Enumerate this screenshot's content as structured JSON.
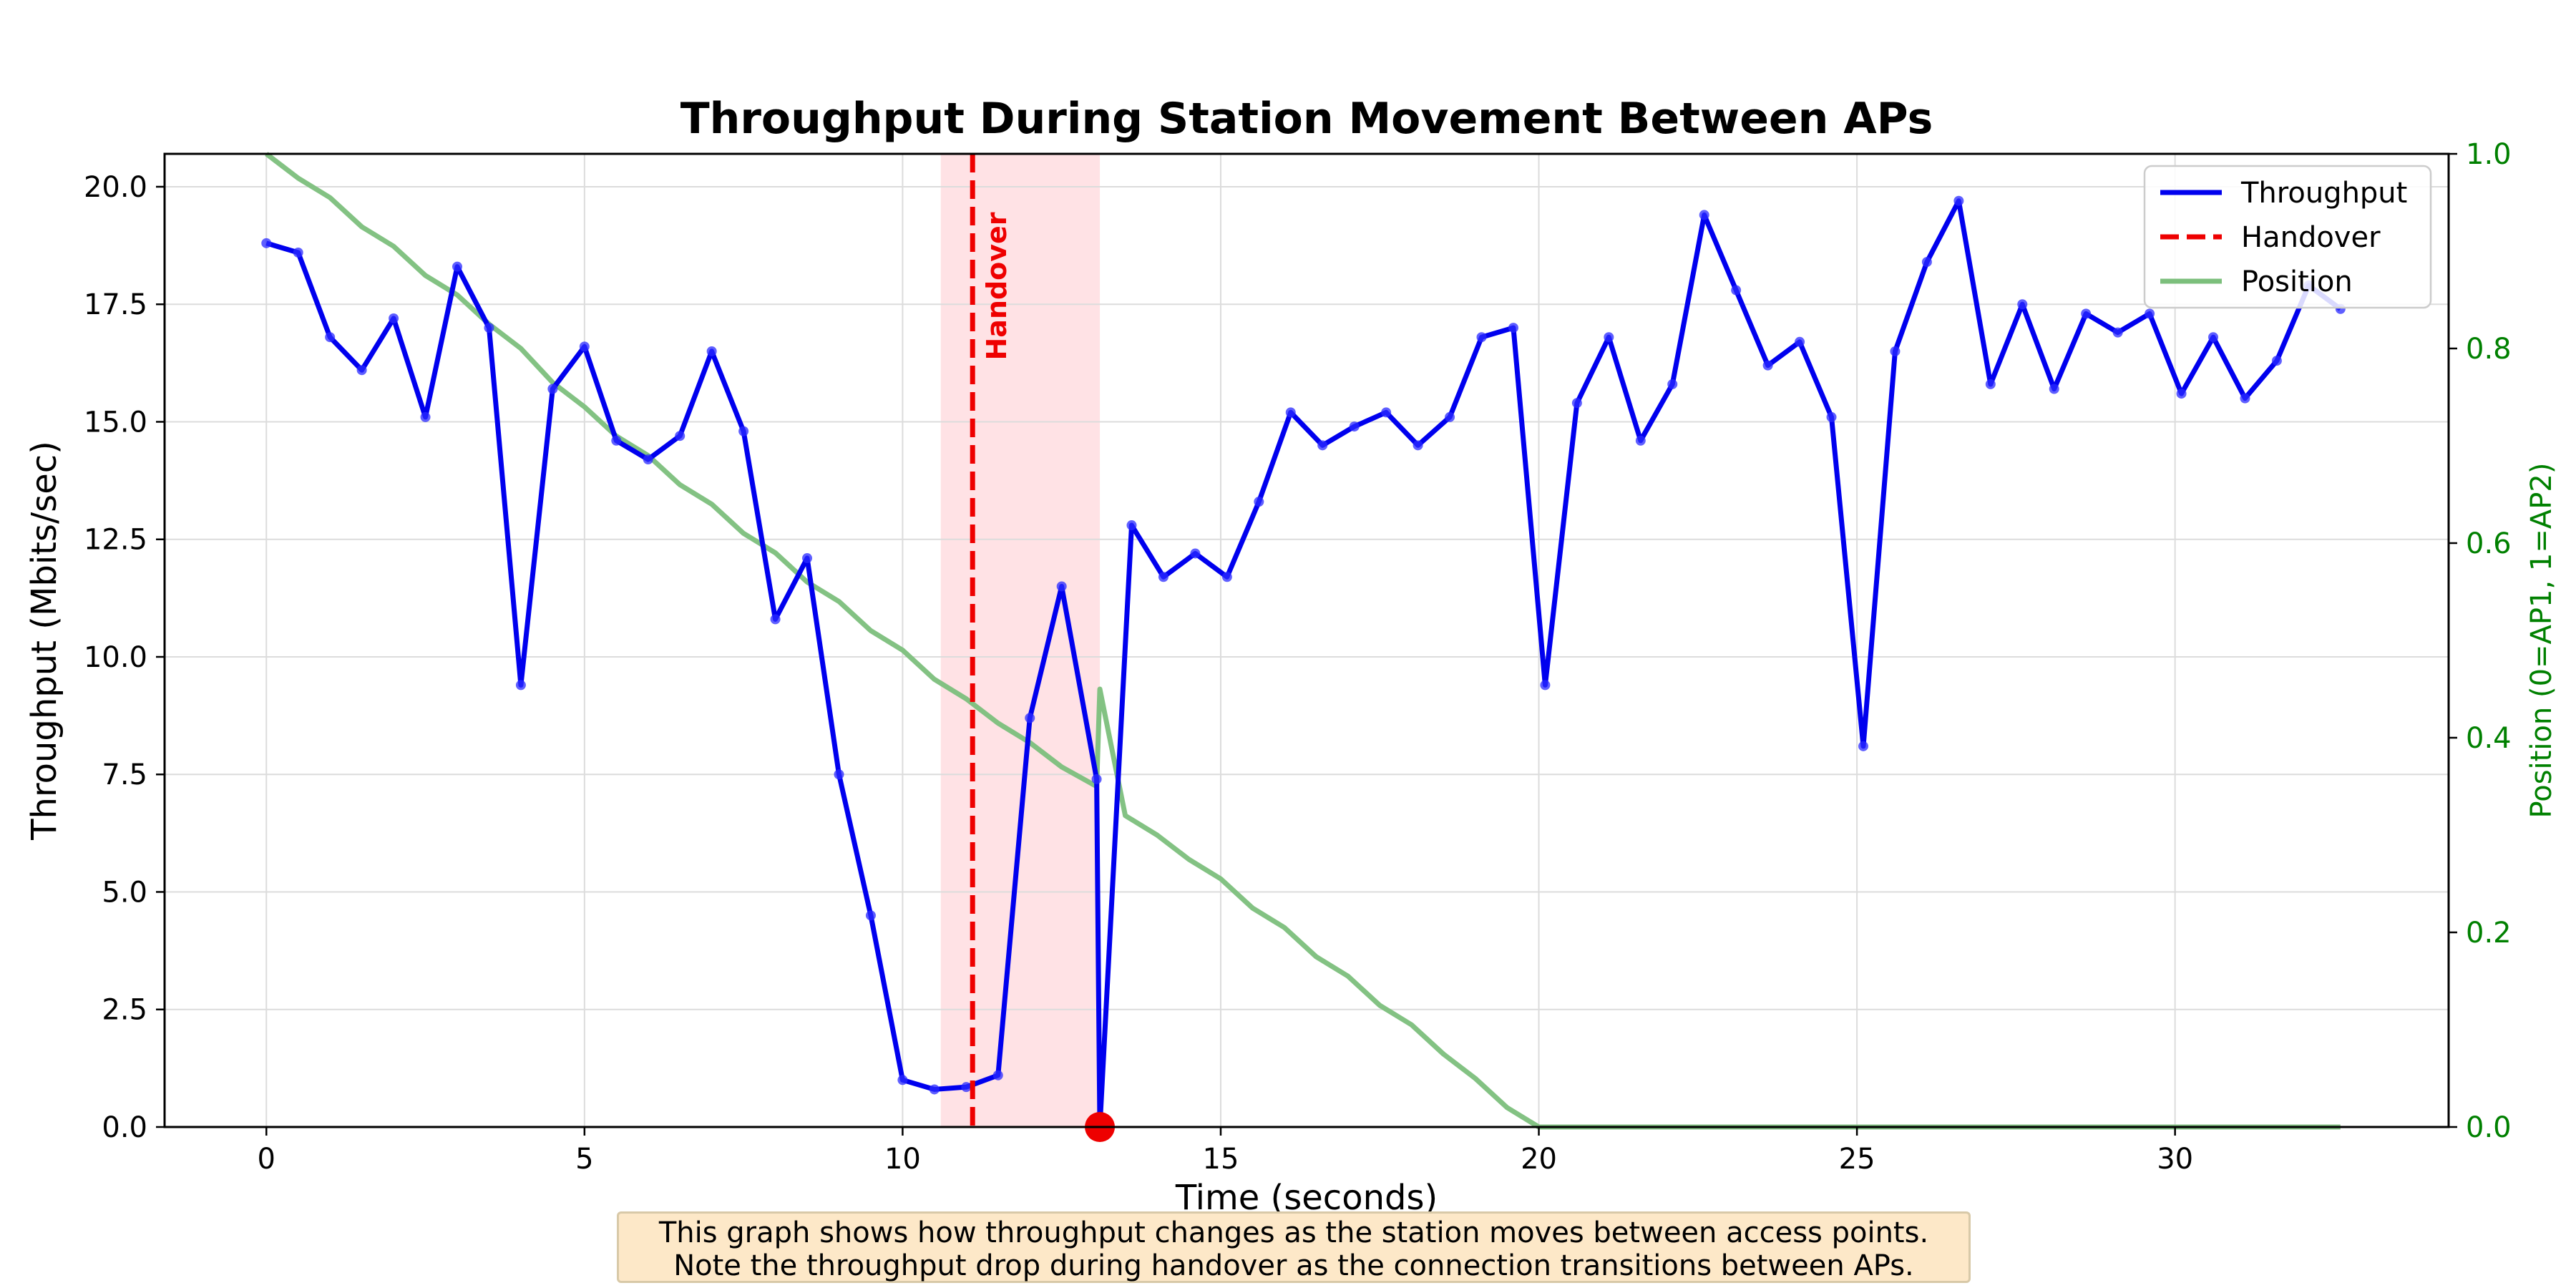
{
  "chart_data": {
    "type": "line",
    "title": "Throughput During Station Movement Between APs",
    "xlabel": "Time (seconds)",
    "ylabel": "Throughput (Mbits/sec)",
    "ylabel_right": "Position (0=AP1, 1=AP2)",
    "xlim": [
      -1.6,
      34.3
    ],
    "ylim": [
      0,
      20.7
    ],
    "ylim_right": [
      0,
      1.0
    ],
    "xticks": [
      0,
      5,
      10,
      15,
      20,
      25,
      30
    ],
    "yticks": [
      "0.0",
      "2.5",
      "5.0",
      "7.5",
      "10.0",
      "12.5",
      "15.0",
      "17.5",
      "20.0"
    ],
    "yticks_right": [
      "0.0",
      "0.2",
      "0.4",
      "0.6",
      "0.8",
      "1.0"
    ],
    "grid": true,
    "legend_position": "top-right",
    "colors": {
      "throughput": "#0000ee",
      "handover": "#ee0000",
      "position": "#7cbf7c",
      "handover_band": "#ffdde0",
      "right_axis": "#008000"
    },
    "handover": {
      "label": "Handover",
      "time": 11.1,
      "band": [
        10.6,
        13.1
      ],
      "failure_marker": {
        "x": 13.1,
        "y": 0.0
      }
    },
    "series": [
      {
        "name": "Throughput",
        "axis": "left",
        "style": "solid-markers",
        "x": [
          0,
          0.5,
          1.0,
          1.5,
          2.0,
          2.5,
          3.0,
          3.5,
          4.0,
          4.5,
          5.0,
          5.5,
          6.0,
          6.5,
          7.0,
          7.5,
          8.0,
          8.5,
          9.0,
          9.5,
          10.0,
          10.5,
          11.0,
          11.5,
          12.0,
          12.5,
          13.05,
          13.1,
          13.6,
          14.1,
          14.6,
          15.1,
          15.6,
          16.1,
          16.6,
          17.1,
          17.6,
          18.1,
          18.6,
          19.1,
          19.6,
          20.1,
          20.6,
          21.1,
          21.6,
          22.1,
          22.6,
          23.1,
          23.6,
          24.1,
          24.6,
          25.1,
          25.6,
          26.1,
          26.6,
          27.1,
          27.6,
          28.1,
          28.6,
          29.1,
          29.6,
          30.1,
          30.6,
          31.1,
          31.6,
          32.1,
          32.6
        ],
        "y": [
          18.8,
          18.6,
          16.8,
          16.1,
          17.2,
          15.1,
          18.3,
          17.0,
          9.4,
          15.7,
          16.6,
          14.6,
          14.2,
          14.7,
          16.5,
          14.8,
          10.8,
          12.1,
          7.5,
          4.5,
          1.0,
          0.8,
          0.85,
          1.1,
          8.7,
          11.5,
          7.4,
          0.0,
          12.8,
          11.7,
          12.2,
          11.7,
          13.3,
          15.2,
          14.5,
          14.9,
          15.2,
          14.5,
          15.1,
          16.8,
          17.0,
          9.4,
          15.4,
          16.8,
          14.6,
          15.8,
          19.4,
          17.8,
          16.2,
          16.7,
          15.1,
          8.1,
          16.5,
          18.4,
          19.7,
          15.8,
          17.5,
          15.7,
          17.3,
          16.9,
          17.3,
          15.6,
          16.8,
          15.5,
          16.3,
          17.9,
          17.4
        ]
      },
      {
        "name": "Handover",
        "axis": "left",
        "style": "dashed-vertical",
        "x": [
          11.1,
          11.1
        ],
        "y": [
          0,
          20.7
        ]
      },
      {
        "name": "Position",
        "axis": "right",
        "style": "solid",
        "x": [
          0,
          0.5,
          1.0,
          1.5,
          2.0,
          2.5,
          3.0,
          3.5,
          4.0,
          4.5,
          5.0,
          5.5,
          6.0,
          6.5,
          7.0,
          7.5,
          8.0,
          8.5,
          9.0,
          9.5,
          10.0,
          10.5,
          11.0,
          11.5,
          12.0,
          12.5,
          13.05,
          13.1,
          13.5,
          14.0,
          14.5,
          15.0,
          15.5,
          16.0,
          16.5,
          17.0,
          17.5,
          18.0,
          18.5,
          19.0,
          19.5,
          20.0,
          20.5,
          21.0,
          22.0,
          24.0,
          26.0,
          28.0,
          30.0,
          32.0,
          32.6
        ],
        "y": [
          1.0,
          0.975,
          0.955,
          0.925,
          0.905,
          0.875,
          0.855,
          0.825,
          0.8,
          0.765,
          0.74,
          0.71,
          0.69,
          0.66,
          0.64,
          0.61,
          0.59,
          0.56,
          0.54,
          0.51,
          0.49,
          0.46,
          0.44,
          0.415,
          0.395,
          0.37,
          0.35,
          0.45,
          0.32,
          0.3,
          0.275,
          0.255,
          0.225,
          0.205,
          0.175,
          0.155,
          0.125,
          0.105,
          0.075,
          0.05,
          0.02,
          0.0,
          0.0,
          0.0,
          0.0,
          0.0,
          0.0,
          0.0,
          0.0,
          0.0,
          0.0
        ]
      }
    ],
    "annotation": {
      "line1": "This graph shows how throughput changes as the station moves between access points.",
      "line2": "Note the throughput drop during handover as the connection transitions between APs."
    }
  }
}
